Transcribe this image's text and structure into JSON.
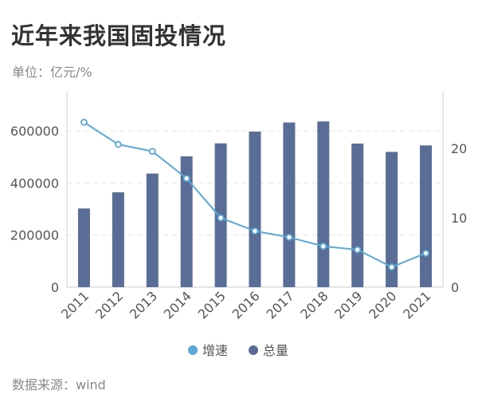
{
  "header": {
    "title": "近年来我国固投情况",
    "subtitle": "单位：亿元/%"
  },
  "footer": {
    "source": "数据来源：wind"
  },
  "colors": {
    "bar": "#5a6d96",
    "line": "#5aa9d6",
    "axis": "#cccccc",
    "grid": "#e6e6e6",
    "tick_text": "#555555"
  },
  "chart_data": {
    "type": "bar",
    "categories": [
      "2011",
      "2012",
      "2013",
      "2014",
      "2015",
      "2016",
      "2017",
      "2018",
      "2019",
      "2020",
      "2021"
    ],
    "series": [
      {
        "name": "总量",
        "type": "bar",
        "axis": "left",
        "values": [
          302000,
          364000,
          436000,
          502000,
          552000,
          597000,
          632000,
          636000,
          551000,
          519000,
          544000
        ]
      },
      {
        "name": "增速",
        "type": "line",
        "axis": "right",
        "values": [
          23.8,
          20.6,
          19.6,
          15.7,
          10.0,
          8.1,
          7.2,
          5.9,
          5.4,
          2.9,
          4.9
        ]
      }
    ],
    "y_left": {
      "min": 0,
      "max": 750000,
      "ticks": [
        "0",
        "200000",
        "400000",
        "600000"
      ],
      "tick_values": [
        0,
        200000,
        400000,
        600000
      ]
    },
    "y_right": {
      "min": 0,
      "max": 28.2,
      "ticks": [
        "0",
        "10",
        "20"
      ],
      "tick_values": [
        0,
        10,
        20
      ]
    },
    "legend": {
      "position": "bottom",
      "items": [
        "增速",
        "总量"
      ]
    },
    "grid": true
  }
}
